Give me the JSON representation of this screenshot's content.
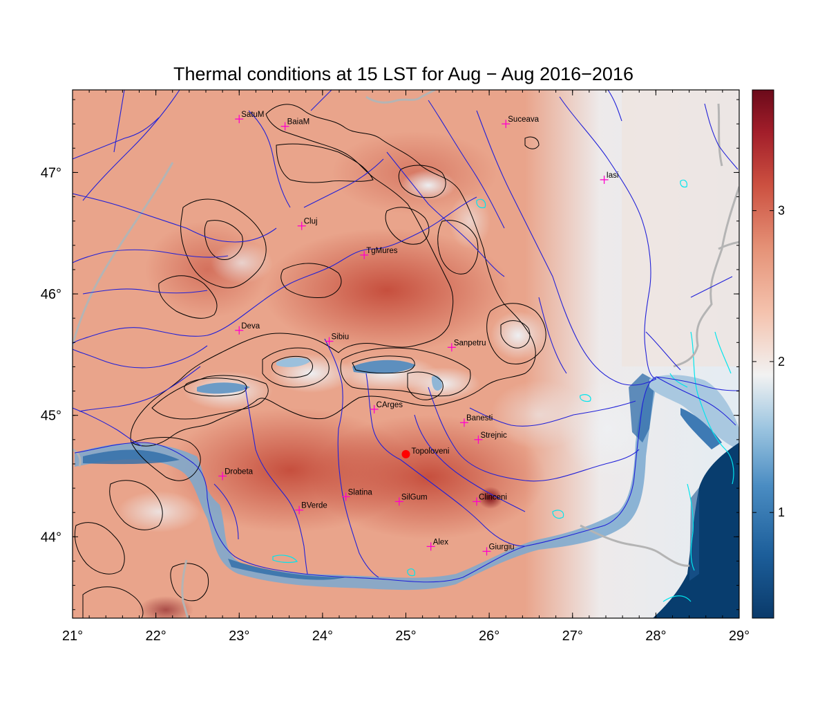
{
  "title": "Thermal conditions at 15 LST for Aug − Aug  2016−2016",
  "map": {
    "lon_range": [
      21,
      29
    ],
    "lat_range": [
      43.33,
      47.68
    ],
    "lon_ticks": [
      21,
      22,
      23,
      24,
      25,
      26,
      27,
      28,
      29
    ],
    "lon_tick_labels": [
      "21°",
      "22°",
      "23°",
      "24°",
      "25°",
      "26°",
      "27°",
      "28°",
      "29°"
    ],
    "lat_ticks": [
      44,
      45,
      46,
      47
    ],
    "lat_tick_labels": [
      "44°",
      "45°",
      "46°",
      "47°"
    ],
    "colors": {
      "high": "#8b1a1a",
      "warm": "#e08a6a",
      "mid": "#f4f4f4",
      "cool": "#6aa3cc",
      "low": "#083d6e",
      "contour": "#000000",
      "rivers": "#2020d8",
      "lakes": "#00e5ee",
      "borders": "#b4b4b4",
      "station_marker": "#ff00cc",
      "highlight_station": "#ff0000"
    },
    "stations": [
      {
        "name": "SatuM",
        "lon": 23.0,
        "lat": 47.44
      },
      {
        "name": "BaiaM",
        "lon": 23.55,
        "lat": 47.38
      },
      {
        "name": "Suceava",
        "lon": 26.2,
        "lat": 47.4
      },
      {
        "name": "Iasi",
        "lon": 27.38,
        "lat": 46.94
      },
      {
        "name": "Cluj",
        "lon": 23.75,
        "lat": 46.56
      },
      {
        "name": "TgMures",
        "lon": 24.5,
        "lat": 46.32
      },
      {
        "name": "Deva",
        "lon": 23.0,
        "lat": 45.7
      },
      {
        "name": "Sibiu",
        "lon": 24.08,
        "lat": 45.61
      },
      {
        "name": "Sanpetru",
        "lon": 25.55,
        "lat": 45.56
      },
      {
        "name": "CArges",
        "lon": 24.62,
        "lat": 45.05
      },
      {
        "name": "Banesti",
        "lon": 25.7,
        "lat": 44.94
      },
      {
        "name": "Strejnic",
        "lon": 25.87,
        "lat": 44.8
      },
      {
        "name": "Drobeta",
        "lon": 22.8,
        "lat": 44.5
      },
      {
        "name": "BVerde",
        "lon": 23.72,
        "lat": 44.22
      },
      {
        "name": "Slatina",
        "lon": 24.28,
        "lat": 44.33
      },
      {
        "name": "SilGum",
        "lon": 24.92,
        "lat": 44.29
      },
      {
        "name": "Clinceni",
        "lon": 25.85,
        "lat": 44.29
      },
      {
        "name": "Alex",
        "lon": 25.3,
        "lat": 43.92
      },
      {
        "name": "Giurgiu",
        "lon": 25.97,
        "lat": 43.88
      }
    ],
    "highlight_station": {
      "name": "Topoloveni",
      "lon": 25.0,
      "lat": 44.68
    }
  },
  "colorbar": {
    "min": 0.3,
    "max": 3.8,
    "ticks": [
      1,
      2,
      3
    ],
    "tick_labels": [
      "1",
      "2",
      "3"
    ]
  }
}
